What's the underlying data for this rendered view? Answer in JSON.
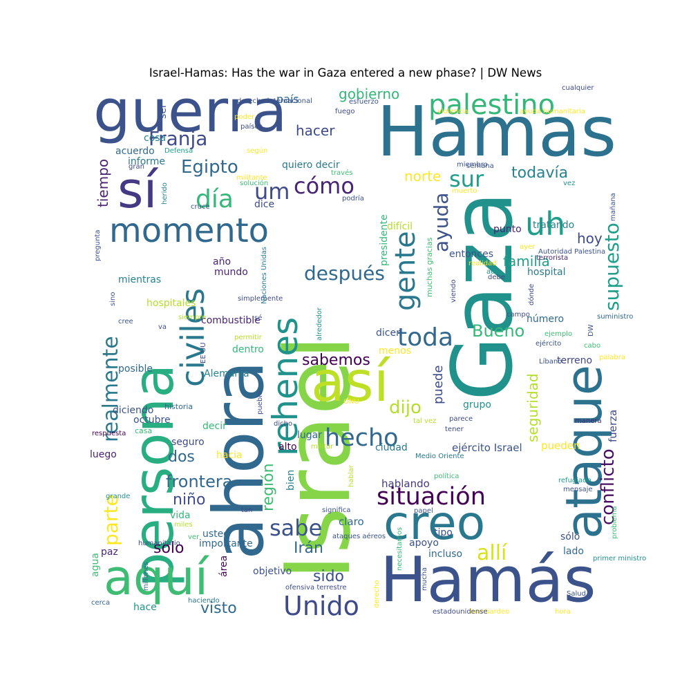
{
  "chart_data": {
    "type": "wordcloud",
    "title": "Israel-Hamas: Has the war in Gaza entered a new phase? | DW News",
    "words": [
      {
        "text": "Israel",
        "color": "#86d549"
      },
      {
        "text": "Gaza",
        "color": "#21918c"
      },
      {
        "text": "Hamas",
        "color": "#2c728e"
      },
      {
        "text": "Hamás",
        "color": "#3b528b"
      },
      {
        "text": "ahora",
        "color": "#31688e"
      },
      {
        "text": "guerra",
        "color": "#3b528b"
      },
      {
        "text": "persona",
        "color": "#28ae80"
      },
      {
        "text": "así",
        "color": "#bddf26"
      },
      {
        "text": "creo",
        "color": "#2a788e"
      },
      {
        "text": "ataque",
        "color": "#2c728e"
      },
      {
        "text": "sí",
        "color": "#443983"
      },
      {
        "text": "aquí",
        "color": "#3fbc73"
      },
      {
        "text": "momento",
        "color": "#31688e"
      },
      {
        "text": "rehenes",
        "color": "#21918c"
      },
      {
        "text": "civiles",
        "color": "#2a788e"
      },
      {
        "text": "palestino",
        "color": "#35b779"
      },
      {
        "text": "uh",
        "color": "#1f9e89"
      },
      {
        "text": "gente",
        "color": "#2a788e"
      },
      {
        "text": "situación",
        "color": "#440154"
      },
      {
        "text": "hecho",
        "color": "#31688e"
      },
      {
        "text": "toda",
        "color": "#31688e"
      },
      {
        "text": "Unido",
        "color": "#3e4a89"
      },
      {
        "text": "realmente",
        "color": "#2a788e"
      },
      {
        "text": "parte",
        "color": "#fde725"
      },
      {
        "text": "conflicto",
        "color": "#471063"
      },
      {
        "text": "supuesto",
        "color": "#1f9e89"
      },
      {
        "text": "Franja",
        "color": "#3e4a89"
      },
      {
        "text": "sabe",
        "color": "#3b528b"
      },
      {
        "text": "allí",
        "color": "#d8e219"
      },
      {
        "text": "cómo",
        "color": "#482475"
      },
      {
        "text": "día",
        "color": "#35b779"
      },
      {
        "text": "um",
        "color": "#3e4a89"
      },
      {
        "text": "sur",
        "color": "#1f9e89"
      },
      {
        "text": "Egipto",
        "color": "#31688e"
      },
      {
        "text": "después",
        "color": "#31688e"
      },
      {
        "text": "ayuda",
        "color": "#3b528b"
      },
      {
        "text": "frontera",
        "color": "#31688e"
      },
      {
        "text": "sabemos",
        "color": "#440154"
      },
      {
        "text": "dijo",
        "color": "#b5de2b"
      },
      {
        "text": "Bueno",
        "color": "#35b779"
      },
      {
        "text": "gobierno",
        "color": "#35b779"
      },
      {
        "text": "región",
        "color": "#3fbc73"
      },
      {
        "text": "tiempo",
        "color": "#482475"
      },
      {
        "text": "hacer",
        "color": "#3e4a89"
      },
      {
        "text": "todavía",
        "color": "#26828e"
      },
      {
        "text": "norte",
        "color": "#fde725"
      },
      {
        "text": "hoy",
        "color": "#3e4a89"
      },
      {
        "text": "familia",
        "color": "#1fa188"
      },
      {
        "text": "seguridad",
        "color": "#b5de2b"
      },
      {
        "text": "niño",
        "color": "#3e4a89"
      },
      {
        "text": "dos",
        "color": "#31688e"
      },
      {
        "text": "Irán",
        "color": "#31688e"
      },
      {
        "text": "sido",
        "color": "#3b528b"
      },
      {
        "text": "visto",
        "color": "#31688e"
      },
      {
        "text": "solo",
        "color": "#440154"
      },
      {
        "text": "país",
        "color": "#31688e"
      },
      {
        "text": "puede",
        "color": "#3e4a89"
      },
      {
        "text": "presidente",
        "color": "#35b779"
      },
      {
        "text": "quiero decir",
        "color": "#2a788e"
      },
      {
        "text": "hospital",
        "color": "#2a788e"
      },
      {
        "text": "Alemania",
        "color": "#26828e"
      },
      {
        "text": "muchas gracias",
        "color": "#3fbc73"
      },
      {
        "text": "ejército Israel",
        "color": "#3b528b"
      },
      {
        "text": "hablando",
        "color": "#443983"
      },
      {
        "text": "fuerza",
        "color": "#3e4a89"
      },
      {
        "text": "claro",
        "color": "#31688e"
      },
      {
        "text": "pueden",
        "color": "#fde725"
      },
      {
        "text": "grupo",
        "color": "#21918c"
      },
      {
        "text": "posible",
        "color": "#31688e"
      },
      {
        "text": "diciendo",
        "color": "#3b528b"
      },
      {
        "text": "octubre",
        "color": "#3b528b"
      },
      {
        "text": "luego",
        "color": "#482475"
      },
      {
        "text": "combustible",
        "color": "#482475"
      },
      {
        "text": "hospitales",
        "color": "#b5de2b"
      },
      {
        "text": "difícil",
        "color": "#b5de2b"
      },
      {
        "text": "dice",
        "color": "#3e4a89"
      },
      {
        "text": "punto",
        "color": "#482475"
      },
      {
        "text": "tratando",
        "color": "#26828e"
      },
      {
        "text": "entonces",
        "color": "#3b528b"
      },
      {
        "text": "número",
        "color": "#31688e"
      },
      {
        "text": "terreno",
        "color": "#414487"
      },
      {
        "text": "ciudad",
        "color": "#2a788e"
      },
      {
        "text": "lugar",
        "color": "#31688e"
      },
      {
        "text": "alto",
        "color": "#440154"
      },
      {
        "text": "menos",
        "color": "#fde725"
      },
      {
        "text": "dicen",
        "color": "#3b528b"
      },
      {
        "text": "año",
        "color": "#482475"
      },
      {
        "text": "mundo",
        "color": "#482475"
      },
      {
        "text": "mientras",
        "color": "#26828e"
      },
      {
        "text": "acuerdo",
        "color": "#31688e"
      },
      {
        "text": "informe",
        "color": "#2a788e"
      },
      {
        "text": "cosa",
        "color": "#26828e"
      },
      {
        "text": "ser",
        "color": "#3b528b"
      },
      {
        "text": "decir",
        "color": "#35b779"
      },
      {
        "text": "seguro",
        "color": "#3e4a89"
      },
      {
        "text": "hacia",
        "color": "#fde725"
      },
      {
        "text": "dentro",
        "color": "#35b779"
      },
      {
        "text": "vida",
        "color": "#35b779"
      },
      {
        "text": "usted",
        "color": "#31688e"
      },
      {
        "text": "importante",
        "color": "#31688e"
      },
      {
        "text": "apoyo",
        "color": "#3b528b"
      },
      {
        "text": "incluso",
        "color": "#31688e"
      },
      {
        "text": "tipo",
        "color": "#3b528b"
      },
      {
        "text": "sólo",
        "color": "#3b528b"
      },
      {
        "text": "lado",
        "color": "#31688e"
      },
      {
        "text": "objetivo",
        "color": "#3b528b"
      },
      {
        "text": "paz",
        "color": "#482475"
      },
      {
        "text": "área",
        "color": "#440154"
      },
      {
        "text": "agua",
        "color": "#3fbc73"
      },
      {
        "text": "hace",
        "color": "#21918c"
      },
      {
        "text": "bien",
        "color": "#26828e"
      },
      {
        "text": "casa",
        "color": "#35b779"
      },
      {
        "text": "historia",
        "color": "#31688e"
      },
      {
        "text": "militar",
        "color": "#b5de2b"
      },
      {
        "text": "Medio Oriente",
        "color": "#2a788e"
      },
      {
        "text": "política",
        "color": "#3fbc73"
      },
      {
        "text": "refugiado",
        "color": "#1fa188"
      },
      {
        "text": "mensaje",
        "color": "#3b528b"
      },
      {
        "text": "problema",
        "color": "#3fbc73"
      },
      {
        "text": "primer ministro",
        "color": "#21918c"
      },
      {
        "text": "Salud",
        "color": "#3b528b"
      },
      {
        "text": "hora",
        "color": "#fde725"
      },
      {
        "text": "bombardeo",
        "color": "#fde725"
      },
      {
        "text": "estadounidense",
        "color": "#3e4a89"
      },
      {
        "text": "mucha",
        "color": "#3b528b"
      },
      {
        "text": "necesitamos",
        "color": "#35b779"
      },
      {
        "text": "derecho",
        "color": "#fde725"
      },
      {
        "text": "ofensiva terrestre",
        "color": "#3e4a89"
      },
      {
        "text": "haciendo",
        "color": "#2a788e"
      },
      {
        "text": "cerca",
        "color": "#31688e"
      },
      {
        "text": "millones",
        "color": "#31688e"
      },
      {
        "text": "humanitario",
        "color": "#3e4a89"
      },
      {
        "text": "miles",
        "color": "#b5de2b"
      },
      {
        "text": "ver",
        "color": "#3fbc73"
      },
      {
        "text": "tan",
        "color": "#3e4a89"
      },
      {
        "text": "significa",
        "color": "#3b528b"
      },
      {
        "text": "ataques aéreos",
        "color": "#3b528b"
      },
      {
        "text": "hablar",
        "color": "#b5de2b"
      },
      {
        "text": "papel",
        "color": "#3b528b"
      },
      {
        "text": "grande",
        "color": "#21918c"
      },
      {
        "text": "respuesta",
        "color": "#440154"
      },
      {
        "text": "dicho",
        "color": "#3e4a89"
      },
      {
        "text": "pueblo",
        "color": "#3e4a89"
      },
      {
        "text": "ONU",
        "color": "#fde725"
      },
      {
        "text": "tal vez",
        "color": "#b5de2b"
      },
      {
        "text": "parece",
        "color": "#3e4a89"
      },
      {
        "text": "tener",
        "color": "#3e4a89"
      },
      {
        "text": "manera",
        "color": "#482475"
      },
      {
        "text": "palabra",
        "color": "#fde725"
      },
      {
        "text": "cabo",
        "color": "#3fbc73"
      },
      {
        "text": "ejemplo",
        "color": "#3fbc73"
      },
      {
        "text": "ejército",
        "color": "#3b528b"
      },
      {
        "text": "Líbano",
        "color": "#3b528b"
      },
      {
        "text": "DW",
        "color": "#3b528b"
      },
      {
        "text": "suministro",
        "color": "#31688e"
      },
      {
        "text": "campo",
        "color": "#3e4a89"
      },
      {
        "text": "dónde",
        "color": "#3e4a89"
      },
      {
        "text": "viendo",
        "color": "#3e4a89"
      },
      {
        "text": "aún",
        "color": "#21918c"
      },
      {
        "text": "debe",
        "color": "#3e4a89"
      },
      {
        "text": "ayer",
        "color": "#fde725"
      },
      {
        "text": "realidad",
        "color": "#fde725"
      },
      {
        "text": "terrorista",
        "color": "#482475"
      },
      {
        "text": "mañana",
        "color": "#3b528b"
      },
      {
        "text": "Autoridad Palestina",
        "color": "#3b528b"
      },
      {
        "text": "vez",
        "color": "#21918c"
      },
      {
        "text": "muerto",
        "color": "#fde725"
      },
      {
        "text": "miembro",
        "color": "#3b528b"
      },
      {
        "text": "semana",
        "color": "#3b528b"
      },
      {
        "text": "cualquier",
        "color": "#3e4a89"
      },
      {
        "text": "violencia",
        "color": "#fde725"
      },
      {
        "text": "ayuda humanitaria",
        "color": "#fde725"
      },
      {
        "text": "derecho internacional",
        "color": "#3b528b"
      },
      {
        "text": "fuego",
        "color": "#3e4a89"
      },
      {
        "text": "esfuerzo",
        "color": "#3b528b"
      },
      {
        "text": "poder",
        "color": "#fde725"
      },
      {
        "text": "países",
        "color": "#3e4a89"
      },
      {
        "text": "según",
        "color": "#fde725"
      },
      {
        "text": "Defensa",
        "color": "#1fa188"
      },
      {
        "text": "gran",
        "color": "#3e4a89"
      },
      {
        "text": "militante",
        "color": "#fde725"
      },
      {
        "text": "través",
        "color": "#3fbc73"
      },
      {
        "text": "solución",
        "color": "#3fbc73"
      },
      {
        "text": "podría",
        "color": "#3b528b"
      },
      {
        "text": "cruce",
        "color": "#3b528b"
      },
      {
        "text": "herido",
        "color": "#26828e"
      },
      {
        "text": "pregunta",
        "color": "#3b528b"
      },
      {
        "text": "sino",
        "color": "#3b528b"
      },
      {
        "text": "simplemente",
        "color": "#3e4a89"
      },
      {
        "text": "Naciones Unidas",
        "color": "#2a788e"
      },
      {
        "text": "sé",
        "color": "#3b528b"
      },
      {
        "text": "siempre",
        "color": "#b5de2b"
      },
      {
        "text": "va",
        "color": "#3e4a89"
      },
      {
        "text": "cree",
        "color": "#3b528b"
      },
      {
        "text": "EE UU",
        "color": "#3e4a89"
      },
      {
        "text": "permitir",
        "color": "#b5de2b"
      },
      {
        "text": "alrededor",
        "color": "#21918c"
      },
      {
        "text": "Consejo",
        "color": "#3b528b"
      },
      {
        "text": "camiones",
        "color": "#3fbc73"
      }
    ]
  }
}
